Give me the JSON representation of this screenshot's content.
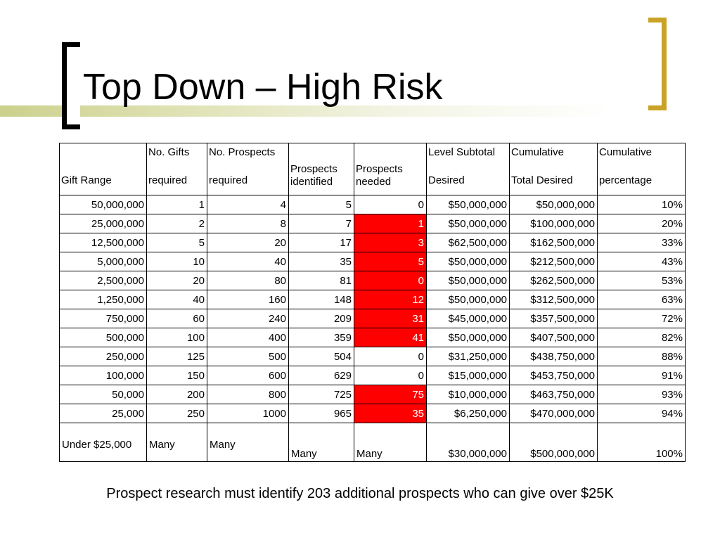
{
  "title": "Top Down – High Risk",
  "colors": {
    "highlight": "#ff0000",
    "bracket_gold": "#c9a227",
    "band": "#ccd08c"
  },
  "table": {
    "headers": [
      {
        "line1": "",
        "line2": "Gift Range"
      },
      {
        "line1": "No. Gifts",
        "line2": "required"
      },
      {
        "line1": "No. Prospects",
        "line2": "required"
      },
      {
        "line1": "",
        "line2": "Prospects identified"
      },
      {
        "line1": "",
        "line2": "Prospects needed"
      },
      {
        "line1": "Level Subtotal",
        "line2": "Desired"
      },
      {
        "line1": "Cumulative",
        "line2": "Total Desired"
      },
      {
        "line1": "Cumulative",
        "line2": "percentage"
      }
    ],
    "rows": [
      {
        "cells": [
          "50,000,000",
          "1",
          "4",
          "5",
          "0",
          "$50,000,000",
          "$50,000,000",
          "10%"
        ],
        "needed_highlight": false
      },
      {
        "cells": [
          "25,000,000",
          "2",
          "8",
          "7",
          "1",
          "$50,000,000",
          "$100,000,000",
          "20%"
        ],
        "needed_highlight": true
      },
      {
        "cells": [
          "12,500,000",
          "5",
          "20",
          "17",
          "3",
          "$62,500,000",
          "$162,500,000",
          "33%"
        ],
        "needed_highlight": true
      },
      {
        "cells": [
          "5,000,000",
          "10",
          "40",
          "35",
          "5",
          "$50,000,000",
          "$212,500,000",
          "43%"
        ],
        "needed_highlight": true
      },
      {
        "cells": [
          "2,500,000",
          "20",
          "80",
          "81",
          "0",
          "$50,000,000",
          "$262,500,000",
          "53%"
        ],
        "needed_highlight": true
      },
      {
        "cells": [
          "1,250,000",
          "40",
          "160",
          "148",
          "12",
          "$50,000,000",
          "$312,500,000",
          "63%"
        ],
        "needed_highlight": true
      },
      {
        "cells": [
          "750,000",
          "60",
          "240",
          "209",
          "31",
          "$45,000,000",
          "$357,500,000",
          "72%"
        ],
        "needed_highlight": true
      },
      {
        "cells": [
          "500,000",
          "100",
          "400",
          "359",
          "41",
          "$50,000,000",
          "$407,500,000",
          "82%"
        ],
        "needed_highlight": true
      },
      {
        "cells": [
          "250,000",
          "125",
          "500",
          "504",
          "0",
          "$31,250,000",
          "$438,750,000",
          "88%"
        ],
        "needed_highlight": false
      },
      {
        "cells": [
          "100,000",
          "150",
          "600",
          "629",
          "0",
          "$15,000,000",
          "$453,750,000",
          "91%"
        ],
        "needed_highlight": false
      },
      {
        "cells": [
          "50,000",
          "200",
          "800",
          "725",
          "75",
          "$10,000,000",
          "$463,750,000",
          "93%"
        ],
        "needed_highlight": true
      },
      {
        "cells": [
          "25,000",
          "250",
          "1000",
          "965",
          "35",
          "$6,250,000",
          "$470,000,000",
          "94%"
        ],
        "needed_highlight": true
      }
    ],
    "last_row": [
      "Under $25,000",
      "Many",
      "Many",
      "Many",
      "Many",
      "$30,000,000",
      "$500,000,000",
      "100%"
    ]
  },
  "footnote": "Prospect research must identify 203 additional prospects who can give over $25K"
}
